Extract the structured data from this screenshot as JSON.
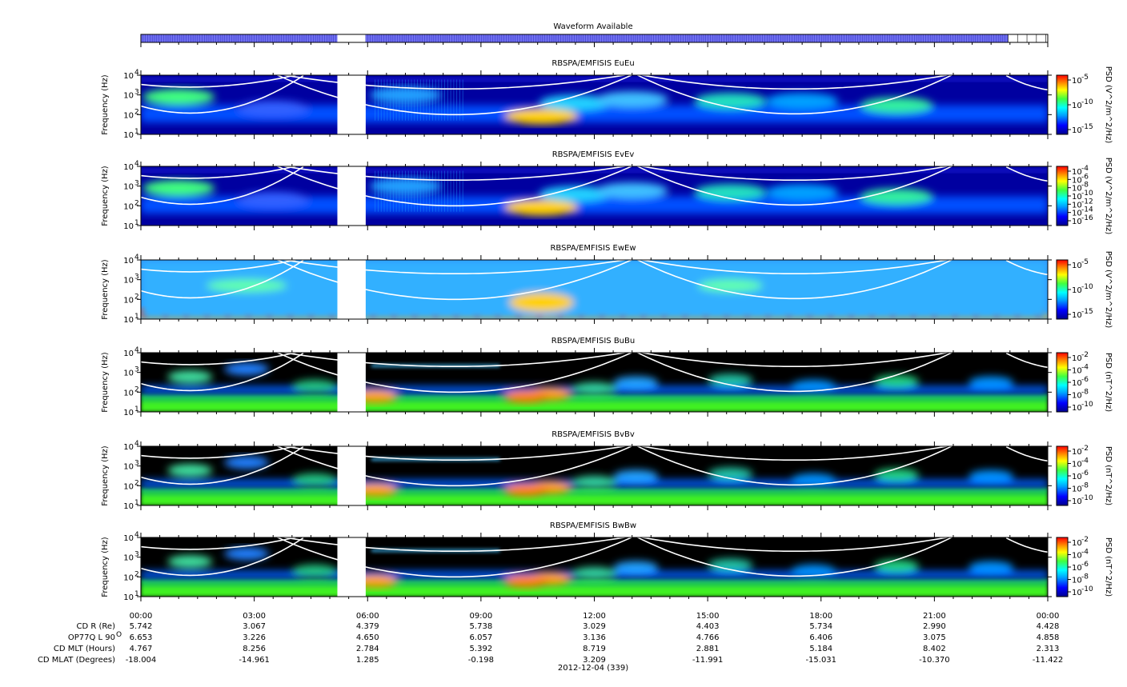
{
  "waveform": {
    "title": "Waveform Available",
    "available_segments_hours": [
      [
        0,
        5.2
      ],
      [
        5.95,
        22.95
      ]
    ],
    "unavailable_segments_hours": [
      [
        5.2,
        5.95
      ],
      [
        22.95,
        24
      ]
    ],
    "color": "#7070f0"
  },
  "x_axis": {
    "tick_labels": [
      "00:00",
      "03:00",
      "06:00",
      "09:00",
      "12:00",
      "15:00",
      "18:00",
      "21:00",
      "00:00"
    ],
    "tick_hours": [
      0,
      3,
      6,
      9,
      12,
      15,
      18,
      21,
      24
    ],
    "minor_ticks_per_major": 6,
    "date_label": "2012-12-04 (339)"
  },
  "ephemeris": {
    "rows": [
      {
        "label": "CD R (Re)",
        "values": [
          "5.742",
          "3.067",
          "4.379",
          "5.738",
          "3.029",
          "4.403",
          "5.734",
          "2.990",
          "4.428"
        ]
      },
      {
        "label": "OP77Q L 90",
        "sup": "O",
        "values": [
          "6.653",
          "3.226",
          "4.650",
          "6.057",
          "3.136",
          "4.766",
          "6.406",
          "3.075",
          "4.858"
        ]
      },
      {
        "label": "CD MLT (Hours)",
        "values": [
          "4.767",
          "8.256",
          "2.784",
          "5.392",
          "8.719",
          "2.881",
          "5.184",
          "8.402",
          "2.313"
        ]
      },
      {
        "label": "CD MLAT (Degrees)",
        "values": [
          "-18.004",
          "-14.961",
          "1.285",
          "-0.198",
          "3.209",
          "-11.991",
          "-15.031",
          "-10.370",
          "-11.422"
        ]
      }
    ]
  },
  "chart_data": [
    {
      "type": "heatmap",
      "title": "RBSPA/EMFISIS  EuEu",
      "ylabel": "Frequency (Hz)",
      "yscale": "log",
      "ylim": [
        10,
        10000
      ],
      "y_ticks": [
        "10",
        "10",
        "10",
        "10"
      ],
      "y_tick_exps": [
        "1",
        "2",
        "3",
        "4"
      ],
      "colorbar_label": "PSD (V^2/m^2/Hz)",
      "colorbar_ticks": [
        "10",
        "10",
        "10"
      ],
      "colorbar_exps": [
        "-5",
        "-10",
        "-15"
      ],
      "data_gap_hours": [
        5.2,
        5.95
      ],
      "background": "#0000a0",
      "kind": "E"
    },
    {
      "type": "heatmap",
      "title": "RBSPA/EMFISIS  EvEv",
      "ylabel": "Frequency (Hz)",
      "yscale": "log",
      "ylim": [
        10,
        10000
      ],
      "y_ticks": [
        "10",
        "10",
        "10",
        "10"
      ],
      "y_tick_exps": [
        "1",
        "2",
        "3",
        "4"
      ],
      "colorbar_label": "PSD (V^2/m^2/Hz)",
      "colorbar_ticks": [
        "10",
        "10",
        "10",
        "10",
        "10",
        "10",
        "10"
      ],
      "colorbar_exps": [
        "-4",
        "-6",
        "-8",
        "-10",
        "-12",
        "-14",
        "-16"
      ],
      "data_gap_hours": [
        5.2,
        5.95
      ],
      "background": "#0000a0",
      "kind": "E"
    },
    {
      "type": "heatmap",
      "title": "RBSPA/EMFISIS  EwEw",
      "ylabel": "Frequency (Hz)",
      "yscale": "log",
      "ylim": [
        10,
        10000
      ],
      "y_ticks": [
        "10",
        "10",
        "10",
        "10"
      ],
      "y_tick_exps": [
        "1",
        "2",
        "3",
        "4"
      ],
      "colorbar_label": "PSD (V^2/m^2/Hz)",
      "colorbar_ticks": [
        "10",
        "10",
        "10"
      ],
      "colorbar_exps": [
        "-5",
        "-10",
        "-15"
      ],
      "data_gap_hours": [
        5.2,
        5.95
      ],
      "background": "#2f8fff",
      "kind": "Ew"
    },
    {
      "type": "heatmap",
      "title": "RBSPA/EMFISIS  BuBu",
      "ylabel": "Frequency (Hz)",
      "yscale": "log",
      "ylim": [
        10,
        10000
      ],
      "y_ticks": [
        "10",
        "10",
        "10",
        "10"
      ],
      "y_tick_exps": [
        "1",
        "2",
        "3",
        "4"
      ],
      "colorbar_label": "PSD (nT^2/Hz)",
      "colorbar_ticks": [
        "10",
        "10",
        "10",
        "10",
        "10"
      ],
      "colorbar_exps": [
        "-2",
        "-4",
        "-6",
        "-8",
        "-10"
      ],
      "data_gap_hours": [
        5.2,
        5.95
      ],
      "background": "#000000",
      "kind": "B"
    },
    {
      "type": "heatmap",
      "title": "RBSPA/EMFISIS  BvBv",
      "ylabel": "Frequency (Hz)",
      "yscale": "log",
      "ylim": [
        10,
        10000
      ],
      "y_ticks": [
        "10",
        "10",
        "10",
        "10"
      ],
      "y_tick_exps": [
        "1",
        "2",
        "3",
        "4"
      ],
      "colorbar_label": "PSD (nT^2/Hz)",
      "colorbar_ticks": [
        "10",
        "10",
        "10",
        "10",
        "10"
      ],
      "colorbar_exps": [
        "-2",
        "-4",
        "-6",
        "-8",
        "-10"
      ],
      "data_gap_hours": [
        5.2,
        5.95
      ],
      "background": "#000000",
      "kind": "B"
    },
    {
      "type": "heatmap",
      "title": "RBSPA/EMFISIS  BwBw",
      "ylabel": "Frequency (Hz)",
      "yscale": "log",
      "ylim": [
        10,
        10000
      ],
      "y_ticks": [
        "10",
        "10",
        "10",
        "10"
      ],
      "y_tick_exps": [
        "1",
        "2",
        "3",
        "4"
      ],
      "colorbar_label": "PSD (nT^2/Hz)",
      "colorbar_ticks": [
        "10",
        "10",
        "10",
        "10",
        "10"
      ],
      "colorbar_exps": [
        "-2",
        "-4",
        "-6",
        "-8",
        "-10"
      ],
      "data_gap_hours": [
        5.2,
        5.95
      ],
      "background": "#000000",
      "kind": "B"
    }
  ]
}
